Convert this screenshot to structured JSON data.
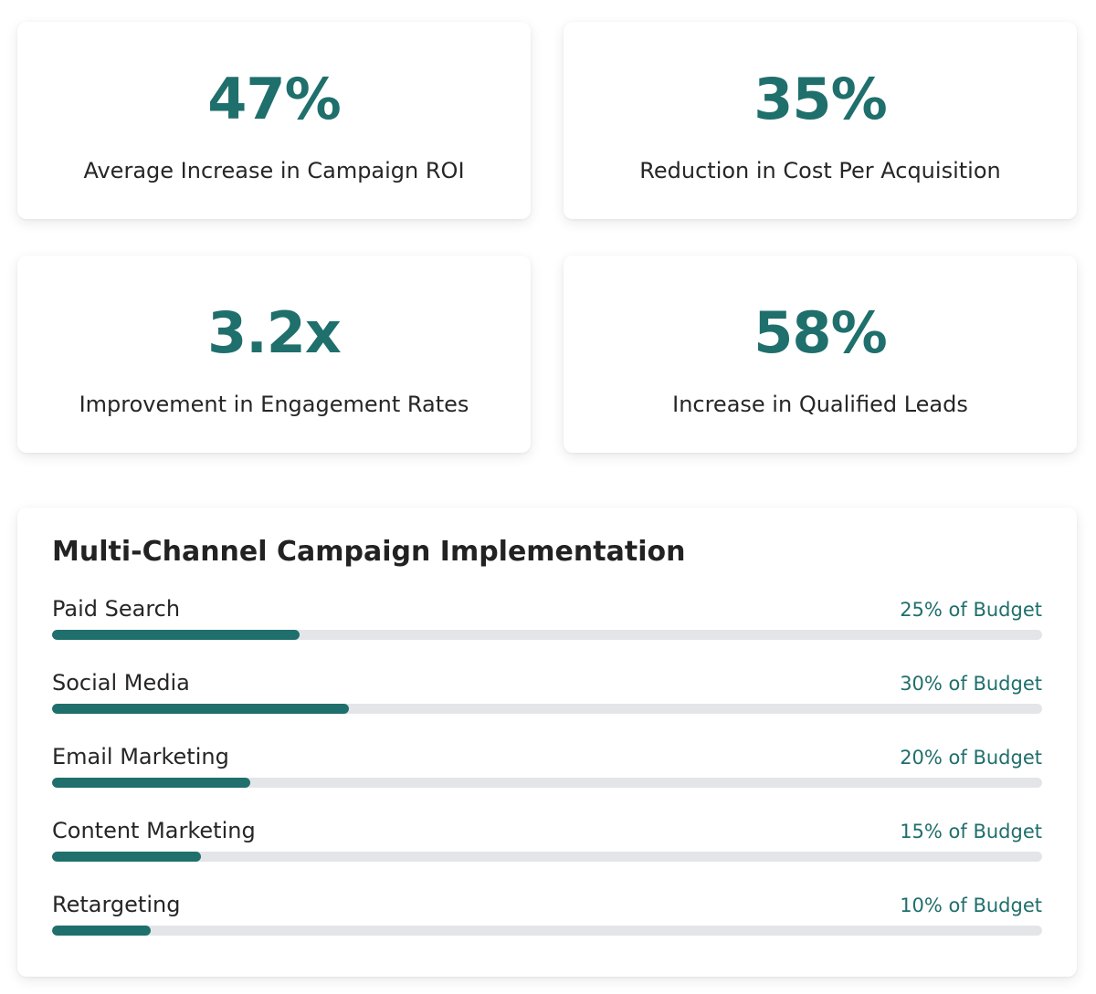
{
  "colors": {
    "accent": "#1f6f6c",
    "track": "#e4e5e8",
    "text": "#262626"
  },
  "stats": [
    {
      "value": "47%",
      "label": "Average Increase in Campaign ROI"
    },
    {
      "value": "35%",
      "label": "Reduction in Cost Per Acquisition"
    },
    {
      "value": "3.2x",
      "label": "Improvement in Engagement Rates"
    },
    {
      "value": "58%",
      "label": "Increase in Qualified Leads"
    }
  ],
  "campaign": {
    "title": "Multi-Channel Campaign Implementation",
    "channels": [
      {
        "name": "Paid Search",
        "budget_label": "25% of Budget",
        "percent": 25
      },
      {
        "name": "Social Media",
        "budget_label": "30% of Budget",
        "percent": 30
      },
      {
        "name": "Email Marketing",
        "budget_label": "20% of Budget",
        "percent": 20
      },
      {
        "name": "Content Marketing",
        "budget_label": "15% of Budget",
        "percent": 15
      },
      {
        "name": "Retargeting",
        "budget_label": "10% of Budget",
        "percent": 10
      }
    ]
  }
}
